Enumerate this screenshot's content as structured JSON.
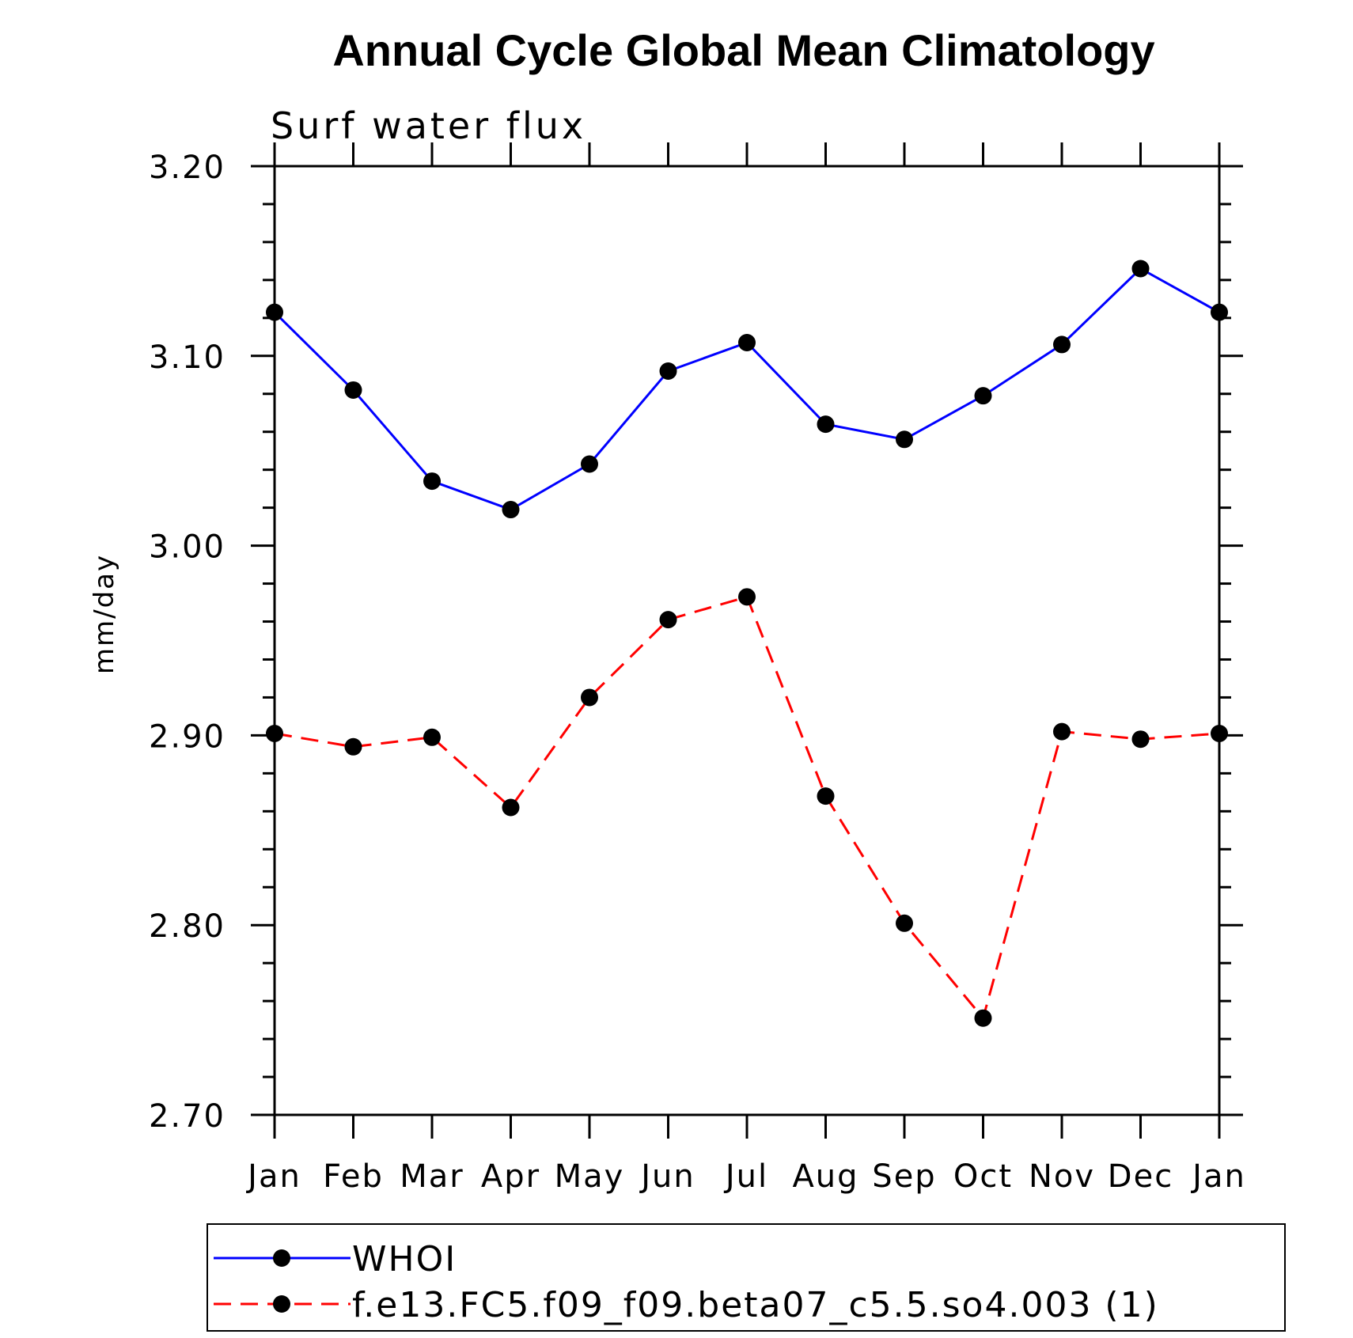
{
  "chart_data": {
    "type": "line",
    "title": "Annual Cycle Global Mean Climatology",
    "subtitle": "Surf water flux",
    "xlabel": "",
    "ylabel": "mm/day",
    "categories": [
      "Jan",
      "Feb",
      "Mar",
      "Apr",
      "May",
      "Jun",
      "Jul",
      "Aug",
      "Sep",
      "Oct",
      "Nov",
      "Dec",
      "Jan"
    ],
    "ylim": [
      2.7,
      3.2
    ],
    "yticks": [
      "2.70",
      "2.80",
      "2.90",
      "3.00",
      "3.10",
      "3.20"
    ],
    "yminor_step": 0.02,
    "grid": false,
    "legend_position": "bottom",
    "series": [
      {
        "name": "WHOI",
        "color": "#0000ff",
        "line_style": "solid",
        "marker": "filled-circle",
        "values": [
          3.123,
          3.082,
          3.034,
          3.019,
          3.043,
          3.092,
          3.107,
          3.064,
          3.056,
          3.079,
          3.106,
          3.146,
          3.123
        ]
      },
      {
        "name": "f.e13.FC5.f09_f09.beta07_c5.5.so4.003 (1)",
        "color": "#ff0000",
        "line_style": "dashed",
        "marker": "filled-circle",
        "values": [
          2.901,
          2.894,
          2.899,
          2.862,
          2.92,
          2.961,
          2.973,
          2.868,
          2.801,
          2.751,
          2.902,
          2.898,
          2.901
        ]
      }
    ]
  }
}
